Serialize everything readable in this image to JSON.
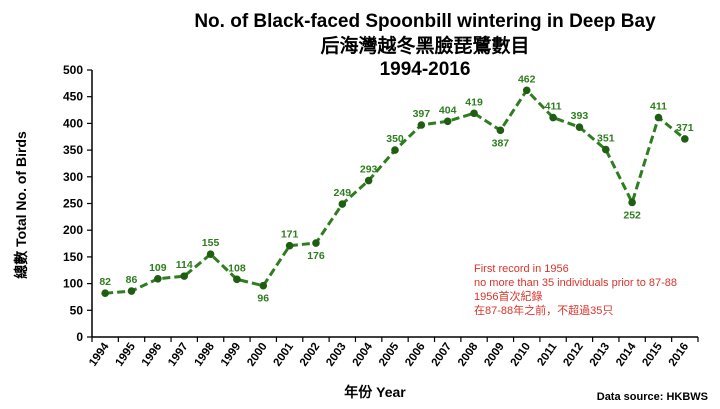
{
  "title": {
    "line1": "No. of Black-faced Spoonbill wintering in Deep Bay",
    "line2": "后海灣越冬黑臉琵鷺數目",
    "line3": "1994-2016"
  },
  "colors": {
    "line": "#2e7d1f",
    "point": "#1f5e12",
    "label": "#2e7d1f",
    "note": "#d9342b",
    "grid": "#000000"
  },
  "chart_data": {
    "type": "line",
    "title": "No. of Black-faced Spoonbill wintering in Deep Bay",
    "xlabel": "年份 Year",
    "ylabel": "總數 Total No. of Birds",
    "ylim": [
      0,
      500
    ],
    "yticks": [
      0,
      50,
      100,
      150,
      200,
      250,
      300,
      350,
      400,
      450,
      500
    ],
    "grid": false,
    "categories": [
      "1994",
      "1995",
      "1996",
      "1997",
      "1998",
      "1999",
      "2000",
      "2001",
      "2002",
      "2003",
      "2004",
      "2005",
      "2006",
      "2007",
      "2008",
      "2009",
      "2010",
      "2011",
      "2012",
      "2013",
      "2014",
      "2015",
      "2016"
    ],
    "series": [
      {
        "values": [
          82,
          86,
          109,
          114,
          155,
          108,
          96,
          171,
          176,
          249,
          293,
          350,
          397,
          404,
          419,
          387,
          462,
          411,
          393,
          351,
          252,
          411,
          371
        ]
      }
    ],
    "label_positions": [
      "above",
      "above",
      "above",
      "above",
      "above",
      "above",
      "below",
      "above",
      "below",
      "above",
      "above",
      "above",
      "above",
      "above",
      "above",
      "below",
      "above",
      "above",
      "above",
      "above",
      "below",
      "above",
      "above"
    ]
  },
  "annotation": {
    "line1": "First record in 1956",
    "line2": "no more than 35 individuals prior to 87-88",
    "line3": "1956首次紀錄",
    "line4": "在87-88年之前，不超過35只"
  },
  "source": "Data source: HKBWS"
}
